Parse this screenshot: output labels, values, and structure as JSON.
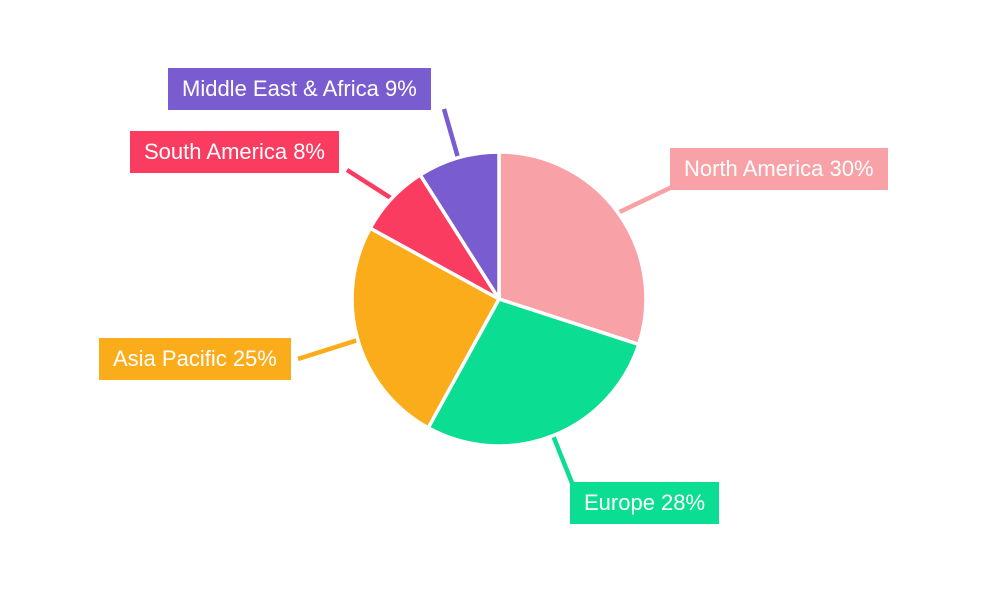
{
  "chart_data": {
    "type": "pie",
    "title": "",
    "slices": [
      {
        "label": "North America",
        "value": 30,
        "unit": "%",
        "label_text": "North America 30%",
        "color": "#F8A1A7"
      },
      {
        "label": "Europe",
        "value": 28,
        "unit": "%",
        "label_text": "Europe 28%",
        "color": "#0BDE92"
      },
      {
        "label": "Asia Pacific",
        "value": 25,
        "unit": "%",
        "label_text": "Asia Pacific 25%",
        "color": "#FBAC1A"
      },
      {
        "label": "South America",
        "value": 8,
        "unit": "%",
        "label_text": "South America 8%",
        "color": "#F93C5F"
      },
      {
        "label": "Middle East & Africa",
        "value": 9,
        "unit": "%",
        "label_text": "Middle East & Africa 9%",
        "color": "#7A5CD1"
      }
    ],
    "start_angle_deg": 0,
    "direction": "clockwise",
    "slice_border_color": "#FFFFFF",
    "label_style": "callout-boxes-with-leader-lines",
    "label_text_color": "#FFFFFF",
    "background": "#FFFFFF",
    "legend_position": "none"
  }
}
